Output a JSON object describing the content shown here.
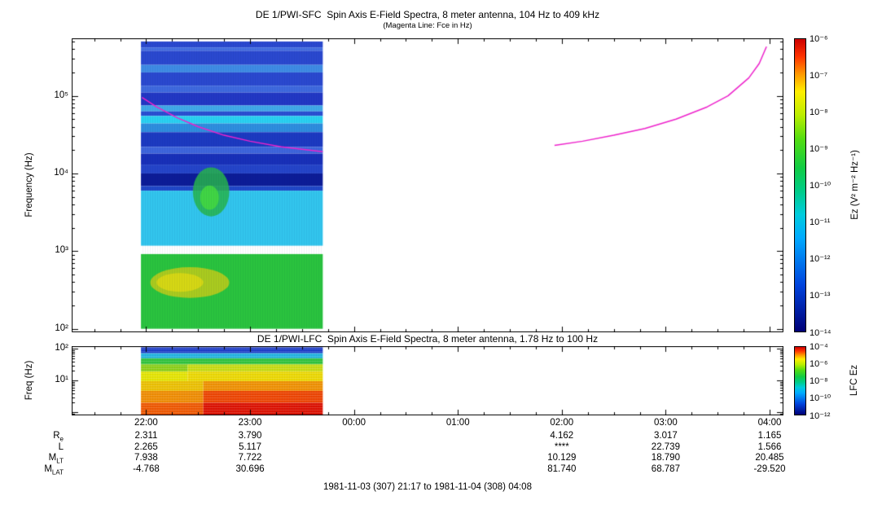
{
  "caption": "1981-11-03 (307) 21:17 to 1981-11-04 (308) 04:08",
  "xaxis": {
    "ticks": [
      {
        "label": "22:00",
        "hour": 22
      },
      {
        "label": "23:00",
        "hour": 23
      },
      {
        "label": "00:00",
        "hour": 24
      },
      {
        "label": "01:00",
        "hour": 25
      },
      {
        "label": "02:00",
        "hour": 26
      },
      {
        "label": "03:00",
        "hour": 27
      },
      {
        "label": "04:00",
        "hour": 28
      }
    ]
  },
  "ephemeris": {
    "col_hours": [
      22,
      23,
      26,
      27,
      28
    ],
    "rows": [
      {
        "base": "R",
        "sub": "e",
        "values": [
          "2.311",
          "3.790",
          "4.162",
          "3.017",
          "1.165"
        ]
      },
      {
        "base": "L",
        "sub": "",
        "values": [
          "2.265",
          "5.117",
          "****",
          "22.739",
          "1.566"
        ]
      },
      {
        "base": "M",
        "sub": "LT",
        "values": [
          "7.938",
          "7.722",
          "10.129",
          "18.790",
          "20.485"
        ]
      },
      {
        "base": "M",
        "sub": "LAT",
        "values": [
          "-4.768",
          "30.696",
          "81.740",
          "68.787",
          "-29.520"
        ]
      }
    ]
  },
  "chart_data": [
    {
      "type": "heatmap",
      "name": "sfc-spectrogram",
      "title": "DE 1/PWI-SFC  Spin Axis E-Field Spectra, 8 meter antenna, 104 Hz to 409 kHz",
      "subtitle": "(Magenta Line: Fce in Hz)",
      "ylabel": "Frequency (Hz)",
      "clabel": "Ez (V² m⁻² Hz⁻¹)",
      "x_range_hours": [
        21.2833,
        28.1333
      ],
      "y_range_hz": [
        90,
        550000
      ],
      "y_ticks": [
        {
          "label": "10⁵",
          "f": 100000
        },
        {
          "label": "10⁴",
          "f": 10000
        },
        {
          "label": "10³",
          "f": 1000
        },
        {
          "label": "10²",
          "f": 100
        }
      ],
      "colorbar": {
        "ticks": [
          "10⁻⁶",
          "10⁻⁷",
          "10⁻⁸",
          "10⁻⁹",
          "10⁻¹⁰",
          "10⁻¹¹",
          "10⁻¹²",
          "10⁻¹³",
          "10⁻¹⁴"
        ],
        "stops": [
          [
            "#cc0000",
            0
          ],
          [
            "#ff3300",
            6
          ],
          [
            "#ff9900",
            12
          ],
          [
            "#ffee00",
            18
          ],
          [
            "#bbee00",
            26
          ],
          [
            "#55dd11",
            34
          ],
          [
            "#11cc44",
            44
          ],
          [
            "#00cc88",
            52
          ],
          [
            "#00ccdd",
            60
          ],
          [
            "#00aaff",
            68
          ],
          [
            "#0077ee",
            76
          ],
          [
            "#0044dd",
            84
          ],
          [
            "#0022aa",
            92
          ],
          [
            "#000077",
            100
          ]
        ]
      },
      "data_block": {
        "t0": 21.95,
        "t1": 23.7,
        "bands": [
          {
            "f0": 500000,
            "f1": 420000,
            "color": "#2b49cf"
          },
          {
            "f0": 420000,
            "f1": 380000,
            "color": "#4570e2"
          },
          {
            "f0": 380000,
            "f1": 250000,
            "color": "#2b49cf"
          },
          {
            "f0": 250000,
            "f1": 200000,
            "color": "#3f8ce4"
          },
          {
            "f0": 200000,
            "f1": 135000,
            "color": "#2b49cf"
          },
          {
            "f0": 135000,
            "f1": 110000,
            "color": "#3f6ade"
          },
          {
            "f0": 110000,
            "f1": 75000,
            "color": "#2238c4"
          },
          {
            "f0": 75000,
            "f1": 63000,
            "color": "#41aae8"
          },
          {
            "f0": 63000,
            "f1": 55000,
            "color": "#2b50d2"
          },
          {
            "f0": 55000,
            "f1": 44000,
            "color": "#2ad2f2"
          },
          {
            "f0": 44000,
            "f1": 34000,
            "color": "#2f8ede"
          },
          {
            "f0": 34000,
            "f1": 22000,
            "color": "#1d3ac1"
          },
          {
            "f0": 22000,
            "f1": 18000,
            "color": "#3e66dc"
          },
          {
            "f0": 18000,
            "f1": 13000,
            "color": "#1931b9"
          },
          {
            "f0": 13000,
            "f1": 10000,
            "color": "#2545c9"
          },
          {
            "f0": 10000,
            "f1": 6900,
            "color": "#0d1d97"
          },
          {
            "f0": 6900,
            "f1": 6000,
            "color": "#2148c8"
          },
          {
            "f0": 6000,
            "f1": 1170,
            "color": "#32c6ee"
          },
          {
            "f0": 920,
            "f1": 100,
            "color": "#2ac43e"
          }
        ],
        "gap": [
          920,
          1170
        ],
        "blobs": [
          {
            "t0": 22.45,
            "t1": 22.8,
            "f0": 12000,
            "f1": 2800,
            "color": "#28b44c",
            "alpha": 0.85
          },
          {
            "t0": 22.52,
            "t1": 22.7,
            "f0": 7000,
            "f1": 3400,
            "color": "#44d840",
            "alpha": 0.9
          },
          {
            "t0": 22.04,
            "t1": 22.8,
            "f0": 620,
            "f1": 250,
            "color": "#b8cc1c",
            "alpha": 0.9
          },
          {
            "t0": 22.1,
            "t1": 22.55,
            "f0": 520,
            "f1": 300,
            "color": "#d8d814",
            "alpha": 0.95
          }
        ]
      },
      "fce_line": {
        "color": "#ee22cc",
        "segments": [
          [
            [
              21.96,
              95000
            ],
            [
              22.1,
              72000
            ],
            [
              22.3,
              52000
            ],
            [
              22.5,
              40000
            ],
            [
              22.75,
              31000
            ],
            [
              23.0,
              26000
            ],
            [
              23.3,
              22000
            ],
            [
              23.7,
              19000
            ]
          ],
          [
            [
              25.93,
              23000
            ],
            [
              26.2,
              26000
            ],
            [
              26.5,
              31000
            ],
            [
              26.8,
              38000
            ],
            [
              27.1,
              50000
            ],
            [
              27.4,
              72000
            ],
            [
              27.6,
              100000
            ],
            [
              27.8,
              170000
            ],
            [
              27.9,
              260000
            ],
            [
              27.97,
              430000
            ]
          ]
        ]
      }
    },
    {
      "type": "heatmap",
      "name": "lfc-spectrogram",
      "title": "DE 1/PWI-LFC  Spin Axis E-Field Spectra, 8 meter antenna, 1.78 Hz to 100 Hz",
      "ylabel": "Freq (Hz)",
      "clabel": "LFC Ez",
      "x_range_hours": [
        21.2833,
        28.1333
      ],
      "y_range_hz": [
        0.8,
        120
      ],
      "y_ticks": [
        {
          "label": "10²",
          "f": 100
        },
        {
          "label": "10¹",
          "f": 10
        }
      ],
      "y_extra_majors": [
        1
      ],
      "colorbar": {
        "ticks": [
          "10⁻⁴",
          "10⁻⁶",
          "10⁻⁸",
          "10⁻¹⁰",
          "10⁻¹²"
        ],
        "stops": [
          [
            "#cc0000",
            0
          ],
          [
            "#ff3300",
            6
          ],
          [
            "#ff9900",
            12
          ],
          [
            "#ffee00",
            18
          ],
          [
            "#bbee00",
            26
          ],
          [
            "#55dd11",
            34
          ],
          [
            "#11cc44",
            44
          ],
          [
            "#00cc88",
            52
          ],
          [
            "#00ccdd",
            60
          ],
          [
            "#00aaff",
            68
          ],
          [
            "#0077ee",
            76
          ],
          [
            "#0044dd",
            84
          ],
          [
            "#0022aa",
            92
          ],
          [
            "#000077",
            100
          ]
        ]
      },
      "data_block": {
        "t0": 21.95,
        "t1": 23.7,
        "bands": [
          {
            "f0": 110,
            "f1": 72,
            "color": "#1c3cc8"
          },
          {
            "f0": 72,
            "f1": 50,
            "color": "#22b4e0"
          },
          {
            "f0": 50,
            "f1": 32,
            "color": "#30c43c"
          },
          {
            "f0": 32,
            "f1": 19,
            "segs": [
              [
                21.95,
                22.4,
                "#8cd018"
              ],
              [
                22.4,
                23.7,
                "#c8dc10"
              ]
            ]
          },
          {
            "f0": 19,
            "f1": 9.5,
            "segs": [
              [
                21.95,
                22.4,
                "#e4e400"
              ],
              [
                22.4,
                23.7,
                "#ecd800"
              ]
            ]
          },
          {
            "f0": 9.5,
            "f1": 4.7,
            "segs": [
              [
                21.95,
                22.55,
                "#ecc000"
              ],
              [
                22.55,
                23.7,
                "#f09000"
              ]
            ]
          },
          {
            "f0": 4.7,
            "f1": 2.0,
            "segs": [
              [
                21.95,
                22.55,
                "#f08c00"
              ],
              [
                22.55,
                23.7,
                "#ee4400"
              ]
            ]
          },
          {
            "f0": 2.0,
            "f1": 0.8,
            "segs": [
              [
                21.95,
                22.55,
                "#f05800"
              ],
              [
                22.55,
                23.7,
                "#dd1100"
              ]
            ]
          }
        ]
      }
    }
  ]
}
